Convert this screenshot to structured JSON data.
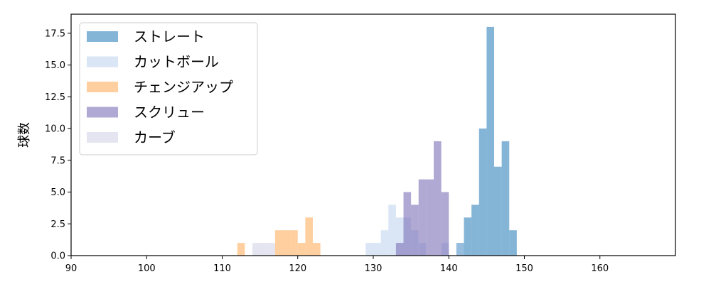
{
  "chart_data": {
    "type": "bar",
    "ylabel": "球数",
    "xlim": [
      90,
      170
    ],
    "ylim": [
      0,
      19
    ],
    "x_ticks": [
      90,
      100,
      110,
      120,
      130,
      140,
      150,
      160
    ],
    "y_ticks": [
      0.0,
      2.5,
      5.0,
      7.5,
      10.0,
      12.5,
      15.0,
      17.5
    ],
    "y_tick_labels": [
      "0.0",
      "2.5",
      "5.0",
      "7.5",
      "10.0",
      "12.5",
      "15.0",
      "17.5"
    ],
    "legend_position": "top-left",
    "grid": false,
    "series": [
      {
        "name": "ストレート",
        "color": "#1f77b4",
        "opacity": 0.55,
        "bins": [
          {
            "x0": 141,
            "x1": 142,
            "value": 1
          },
          {
            "x0": 142,
            "x1": 143,
            "value": 3
          },
          {
            "x0": 143,
            "x1": 144,
            "value": 4
          },
          {
            "x0": 144,
            "x1": 145,
            "value": 10
          },
          {
            "x0": 145,
            "x1": 146,
            "value": 18
          },
          {
            "x0": 146,
            "x1": 147,
            "value": 7
          },
          {
            "x0": 147,
            "x1": 148,
            "value": 9
          },
          {
            "x0": 148,
            "x1": 149,
            "value": 2
          }
        ]
      },
      {
        "name": "カットボール",
        "color": "#aec7e8",
        "opacity": 0.45,
        "bins": [
          {
            "x0": 129,
            "x1": 130,
            "value": 1
          },
          {
            "x0": 130,
            "x1": 131,
            "value": 1
          },
          {
            "x0": 131,
            "x1": 132,
            "value": 2
          },
          {
            "x0": 132,
            "x1": 133,
            "value": 4
          },
          {
            "x0": 133,
            "x1": 134,
            "value": 3
          },
          {
            "x0": 134,
            "x1": 135,
            "value": 3
          },
          {
            "x0": 135,
            "x1": 136,
            "value": 2
          },
          {
            "x0": 136,
            "x1": 137,
            "value": 1
          },
          {
            "x0": 139,
            "x1": 140,
            "value": 1
          },
          {
            "x0": 141,
            "x1": 142,
            "value": 1
          }
        ]
      },
      {
        "name": "チェンジアップ",
        "color": "#ffbb78",
        "opacity": 0.7,
        "bins": [
          {
            "x0": 112,
            "x1": 113,
            "value": 1
          },
          {
            "x0": 117,
            "x1": 118,
            "value": 2
          },
          {
            "x0": 118,
            "x1": 119,
            "value": 2
          },
          {
            "x0": 119,
            "x1": 120,
            "value": 2
          },
          {
            "x0": 120,
            "x1": 121,
            "value": 1
          },
          {
            "x0": 121,
            "x1": 122,
            "value": 3
          },
          {
            "x0": 122,
            "x1": 123,
            "value": 1
          }
        ]
      },
      {
        "name": "スクリュー",
        "color": "#7b6fb5",
        "opacity": 0.6,
        "bins": [
          {
            "x0": 133,
            "x1": 134,
            "value": 1
          },
          {
            "x0": 134,
            "x1": 135,
            "value": 5
          },
          {
            "x0": 135,
            "x1": 136,
            "value": 4
          },
          {
            "x0": 136,
            "x1": 137,
            "value": 6
          },
          {
            "x0": 137,
            "x1": 138,
            "value": 6
          },
          {
            "x0": 138,
            "x1": 139,
            "value": 9
          },
          {
            "x0": 139,
            "x1": 140,
            "value": 5
          }
        ]
      },
      {
        "name": "カーブ",
        "color": "#cfd0e6",
        "opacity": 0.55,
        "bins": [
          {
            "x0": 114,
            "x1": 115,
            "value": 1
          },
          {
            "x0": 115,
            "x1": 116,
            "value": 1
          },
          {
            "x0": 116,
            "x1": 117,
            "value": 1
          }
        ]
      }
    ]
  }
}
